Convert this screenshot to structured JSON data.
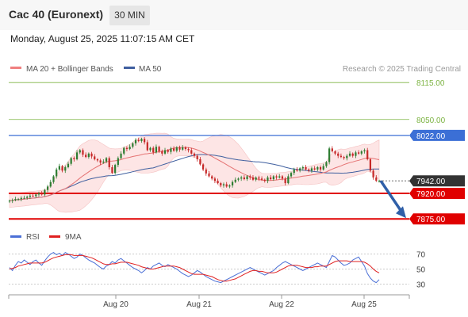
{
  "header": {
    "title": "Cac 40 (Euronext)",
    "interval": "30 MIN",
    "datetime": "Monday, August 25, 2025 11:07:15 AM CET"
  },
  "legend": {
    "ma20": "MA 20 + Bollinger Bands",
    "ma50": "MA 50",
    "credit": "Research © 2025 Trading Central",
    "rsi": "RSI",
    "ma9": "9MA"
  },
  "colors": {
    "up_candle": "#2e7d32",
    "down_candle": "#c62828",
    "ma20": "#e57373",
    "ma50": "#3f5f9f",
    "bollinger_fill": "#fde0e0",
    "resistance_green": "#7cb342",
    "resistance_blue": "#3b6fd6",
    "support_red": "#e00000",
    "arrow": "#2f5fa8",
    "rsi_line": "#4a6fd6",
    "rsi_ma": "#e02020",
    "price_tag": "#333333"
  },
  "chart_data": [
    {
      "type": "candlestick",
      "x_labels": [
        "Aug 20",
        "Aug 21",
        "Aug 22",
        "Aug 25"
      ],
      "ylim": [
        7860,
        8125
      ],
      "levels": [
        {
          "value": 8115.0,
          "label": "8115.00",
          "kind": "resistance-weak"
        },
        {
          "value": 8050.0,
          "label": "8050.00",
          "kind": "resistance-weak"
        },
        {
          "value": 8022.0,
          "label": "8022.00",
          "kind": "resistance"
        },
        {
          "value": 7920.0,
          "label": "7920.00",
          "kind": "support"
        },
        {
          "value": 7875.0,
          "label": "7875.00",
          "kind": "support"
        }
      ],
      "last_price": {
        "value": 7942.0,
        "label": "7942.00"
      },
      "close": [
        7907,
        7908,
        7910,
        7910,
        7912,
        7912,
        7914,
        7916,
        7915,
        7918,
        7920,
        7918,
        7926,
        7932,
        7940,
        7950,
        7962,
        7968,
        7960,
        7966,
        7972,
        7982,
        7980,
        7992,
        7996,
        7988,
        7984,
        7990,
        7985,
        7980,
        7978,
        7974,
        7976,
        7982,
        7966,
        7956,
        7970,
        7982,
        7990,
        8000,
        7998,
        8002,
        8008,
        8014,
        8012,
        8016,
        8010,
        7996,
        8000,
        7992,
        8002,
        7994,
        7990,
        7996,
        7993,
        7999,
        7995,
        8001,
        7997,
        8001,
        7998,
        7996,
        7990,
        7986,
        7980,
        7971,
        7962,
        7955,
        7950,
        7946,
        7942,
        7938,
        7934,
        7936,
        7932,
        7934,
        7940,
        7944,
        7946,
        7948,
        7945,
        7950,
        7948,
        7944,
        7948,
        7946,
        7944,
        7942,
        7948,
        7945,
        7950,
        7948,
        7950,
        7946,
        7938,
        7950,
        7956,
        7962,
        7960,
        7964,
        7966,
        7962,
        7960,
        7964,
        7962,
        7966,
        7962,
        7968,
        7975,
        7999,
        7994,
        7990,
        7986,
        7984,
        7982,
        7986,
        7990,
        7986,
        7992,
        7990,
        7994,
        7996,
        7980,
        7960,
        7948,
        7942,
        7942
      ],
      "rsi": {
        "ylim": [
          20,
          80
        ],
        "levels": [
          70,
          50,
          30
        ],
        "rsi": [
          52,
          48,
          55,
          60,
          58,
          62,
          59,
          56,
          60,
          62,
          58,
          55,
          61,
          66,
          70,
          72,
          69,
          71,
          68,
          72,
          70,
          67,
          64,
          66,
          70,
          68,
          65,
          62,
          60,
          58,
          55,
          52,
          50,
          54,
          56,
          60,
          58,
          62,
          64,
          61,
          58,
          55,
          52,
          50,
          48,
          45,
          48,
          52,
          50,
          54,
          56,
          58,
          55,
          53,
          56,
          54,
          52,
          50,
          47,
          44,
          42,
          40,
          42,
          45,
          48,
          46,
          43,
          40,
          38,
          36,
          34,
          33,
          32,
          34,
          36,
          38,
          40,
          42,
          44,
          46,
          48,
          50,
          52,
          50,
          48,
          46,
          44,
          42,
          44,
          46,
          48,
          52,
          55,
          58,
          60,
          58,
          56,
          54,
          52,
          50,
          48,
          50,
          52,
          54,
          56,
          58,
          56,
          54,
          52,
          60,
          68,
          66,
          62,
          58,
          55,
          56,
          58,
          62,
          64,
          66,
          60,
          54,
          44,
          38,
          34,
          32,
          36
        ],
        "ma9": [
          50,
          51,
          52,
          54,
          55,
          56,
          57,
          58,
          58,
          58,
          58,
          58,
          59,
          61,
          63,
          65,
          66,
          67,
          68,
          69,
          69,
          69,
          68,
          68,
          68,
          68,
          67,
          66,
          65,
          63,
          61,
          59,
          57,
          56,
          56,
          57,
          57,
          58,
          59,
          59,
          59,
          58,
          57,
          56,
          55,
          53,
          52,
          51,
          50,
          50,
          51,
          52,
          53,
          54,
          54,
          54,
          54,
          53,
          52,
          50,
          48,
          46,
          44,
          43,
          43,
          43,
          43,
          42,
          41,
          40,
          38,
          36,
          35,
          34,
          34,
          35,
          36,
          37,
          39,
          41,
          43,
          45,
          47,
          48,
          48,
          47,
          47,
          46,
          45,
          45,
          45,
          46,
          48,
          50,
          52,
          54,
          55,
          55,
          55,
          54,
          53,
          52,
          52,
          52,
          53,
          53,
          54,
          54,
          54,
          56,
          58,
          60,
          61,
          61,
          61,
          61,
          60,
          60,
          60,
          60,
          60,
          59,
          57,
          54,
          50,
          47,
          45
        ]
      }
    }
  ]
}
